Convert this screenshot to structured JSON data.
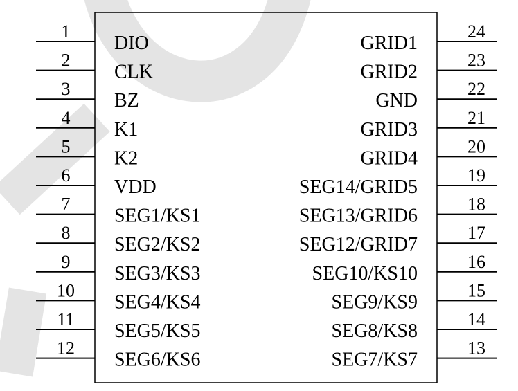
{
  "left_pins": [
    {
      "number": 1,
      "label": "DIO"
    },
    {
      "number": 2,
      "label": "CLK"
    },
    {
      "number": 3,
      "label": "BZ"
    },
    {
      "number": 4,
      "label": "K1"
    },
    {
      "number": 5,
      "label": "K2"
    },
    {
      "number": 6,
      "label": "VDD"
    },
    {
      "number": 7,
      "label": "SEG1/KS1"
    },
    {
      "number": 8,
      "label": "SEG2/KS2"
    },
    {
      "number": 9,
      "label": "SEG3/KS3"
    },
    {
      "number": 10,
      "label": "SEG4/KS4"
    },
    {
      "number": 11,
      "label": "SEG5/KS5"
    },
    {
      "number": 12,
      "label": "SEG6/KS6"
    }
  ],
  "right_pins": [
    {
      "number": 24,
      "label": "GRID1"
    },
    {
      "number": 23,
      "label": "GRID2"
    },
    {
      "number": 22,
      "label": "GND"
    },
    {
      "number": 21,
      "label": "GRID3"
    },
    {
      "number": 20,
      "label": "GRID4"
    },
    {
      "number": 19,
      "label": "SEG14/GRID5"
    },
    {
      "number": 18,
      "label": "SEG13/GRID6"
    },
    {
      "number": 17,
      "label": "SEG12/GRID7"
    },
    {
      "number": 16,
      "label": "SEG10/KS10"
    },
    {
      "number": 15,
      "label": "SEG9/KS9"
    },
    {
      "number": 14,
      "label": "SEG8/KS8"
    },
    {
      "number": 13,
      "label": "SEG7/KS7"
    }
  ]
}
